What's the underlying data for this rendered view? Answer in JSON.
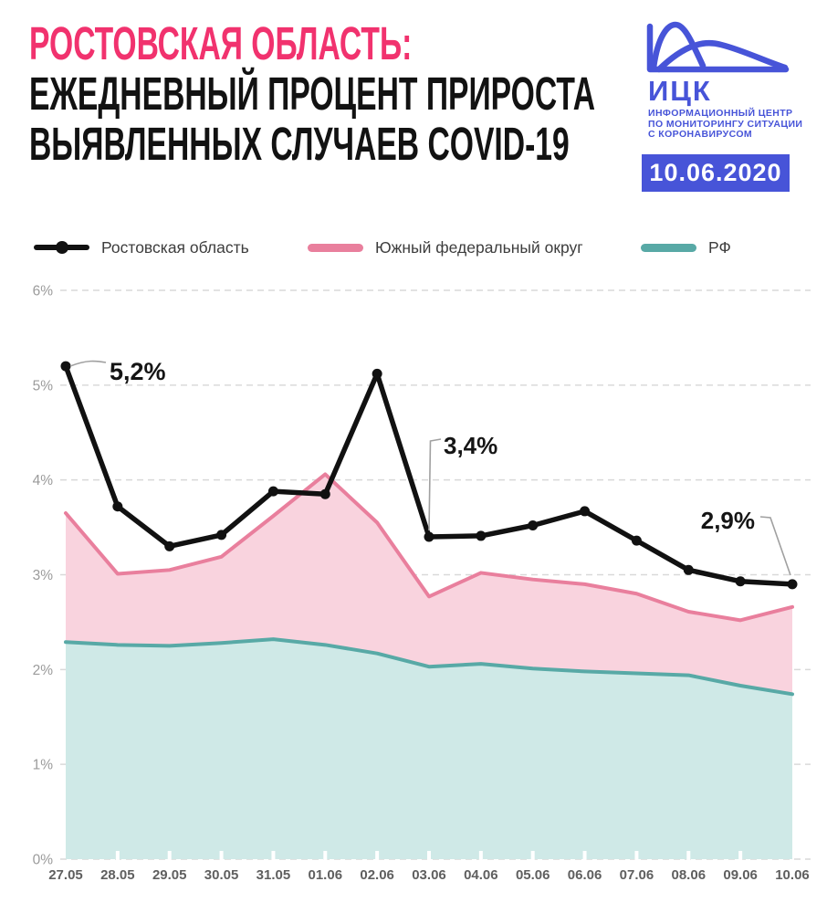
{
  "header": {
    "title_accent": "РОСТОВСКАЯ ОБЛАСТЬ:",
    "title_line2": "ЕЖЕДНЕВНЫЙ ПРОЦЕНТ ПРИРОСТА",
    "title_line3": "ВЫЯВЛЕННЫХ СЛУЧАЕВ COVID-19",
    "logo": {
      "abbr": "ИЦК",
      "subtitle_line1": "ИНФОРМАЦИОННЫЙ ЦЕНТР",
      "subtitle_line2": "ПО МОНИТОРИНГУ СИТУАЦИИ",
      "subtitle_line3": "С КОРОНАВИРУСОМ",
      "date_badge": "10.06.2020"
    }
  },
  "colors": {
    "accent_pink": "#f1326e",
    "brand_blue": "#4754d8",
    "grid": "#d9d9d9",
    "y_label": "#9b9b9b",
    "x_label": "#5f5f5f",
    "annotation_text": "#151515",
    "annotation_line": "#a0a0a0"
  },
  "chart_data": {
    "type": "area",
    "title": "Ежедневный процент прироста выявленных случаев COVID-19, Ростовская область",
    "categories": [
      "27.05",
      "28.05",
      "29.05",
      "30.05",
      "31.05",
      "01.06",
      "02.06",
      "03.06",
      "04.06",
      "05.06",
      "06.06",
      "07.06",
      "08.06",
      "09.06",
      "10.06"
    ],
    "series": [
      {
        "name": "Ростовская область",
        "type": "line",
        "color": "#111111",
        "values": [
          5.2,
          3.72,
          3.3,
          3.42,
          3.88,
          3.85,
          5.12,
          3.4,
          3.41,
          3.52,
          3.67,
          3.36,
          3.05,
          2.93,
          2.9
        ]
      },
      {
        "name": "Южный федеральный округ",
        "type": "area",
        "line_color": "#e97f9d",
        "fill_color": "#f9d3de",
        "values": [
          3.65,
          3.01,
          3.05,
          3.19,
          3.62,
          4.06,
          3.55,
          2.77,
          3.02,
          2.95,
          2.9,
          2.8,
          2.61,
          2.52,
          2.66
        ]
      },
      {
        "name": "РФ",
        "type": "area",
        "line_color": "#58a9a6",
        "fill_color": "#cfe9e7",
        "values": [
          2.29,
          2.26,
          2.25,
          2.28,
          2.32,
          2.26,
          2.17,
          2.03,
          2.06,
          2.01,
          1.98,
          1.96,
          1.94,
          1.83,
          1.74
        ]
      }
    ],
    "ylim": [
      0,
      6
    ],
    "ytick_labels": [
      "0%",
      "1%",
      "2%",
      "3%",
      "4%",
      "5%",
      "6%"
    ],
    "grid": "horizontal-dashed",
    "legend_position": "top",
    "annotations": [
      {
        "text": "5,2%",
        "series": "Ростовская область",
        "category": "27.05",
        "index": 0
      },
      {
        "text": "3,4%",
        "series": "Ростовская область",
        "category": "03.06",
        "index": 7
      },
      {
        "text": "2,9%",
        "series": "Ростовская область",
        "category": "10.06",
        "index": 14
      }
    ]
  }
}
